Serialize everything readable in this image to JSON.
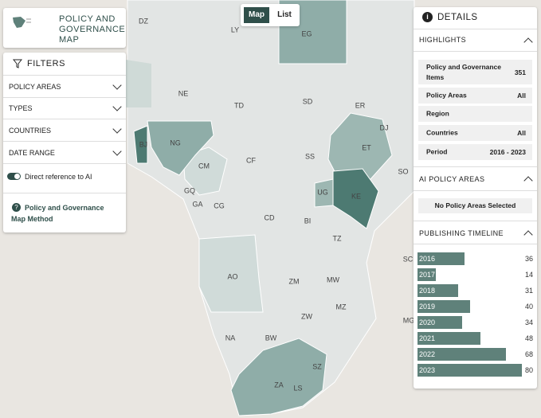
{
  "header": {
    "title": "POLICY AND GOVERNANCE MAP"
  },
  "view_toggle": [
    "Map",
    "List"
  ],
  "filters": {
    "title": "FILTERS",
    "items": [
      "POLICY AREAS",
      "TYPES",
      "COUNTRIES",
      "DATE RANGE"
    ],
    "toggle": "Direct reference to AI",
    "method_link": "Policy and Governance Map Method"
  },
  "map": {
    "labels": [
      "DZ",
      "LY",
      "EG",
      "NE",
      "TD",
      "SD",
      "ER",
      "DJ",
      "BJ",
      "NG",
      "ET",
      "CM",
      "CF",
      "SS",
      "SO",
      "GQ",
      "GA",
      "CG",
      "UG",
      "KE",
      "CD",
      "BI",
      "TZ",
      "SC",
      "AO",
      "ZM",
      "MW",
      "MZ",
      "MG",
      "ZW",
      "NA",
      "BW",
      "SZ",
      "ZA",
      "LS"
    ]
  },
  "details": {
    "title": "DETAILS",
    "highlights": {
      "title": "HIGHLIGHTS",
      "rows": [
        {
          "label": "Policy and Governance Items",
          "value": "351"
        },
        {
          "label": "Policy Areas",
          "value": "All"
        },
        {
          "label": "Region"
        },
        {
          "label": "Countries",
          "value": "All"
        },
        {
          "label": "Period",
          "value": "2016 - 2023"
        }
      ]
    },
    "ai_policy_areas": {
      "title": "AI POLICY AREAS",
      "note": "No Policy Areas Selected"
    },
    "timeline": {
      "title": "PUBLISHING TIMELINE",
      "years": [
        "2016",
        "2017",
        "2018",
        "2019",
        "2020",
        "2021",
        "2022",
        "2023"
      ],
      "counts": [
        36,
        14,
        31,
        40,
        34,
        48,
        68,
        80
      ]
    }
  }
}
